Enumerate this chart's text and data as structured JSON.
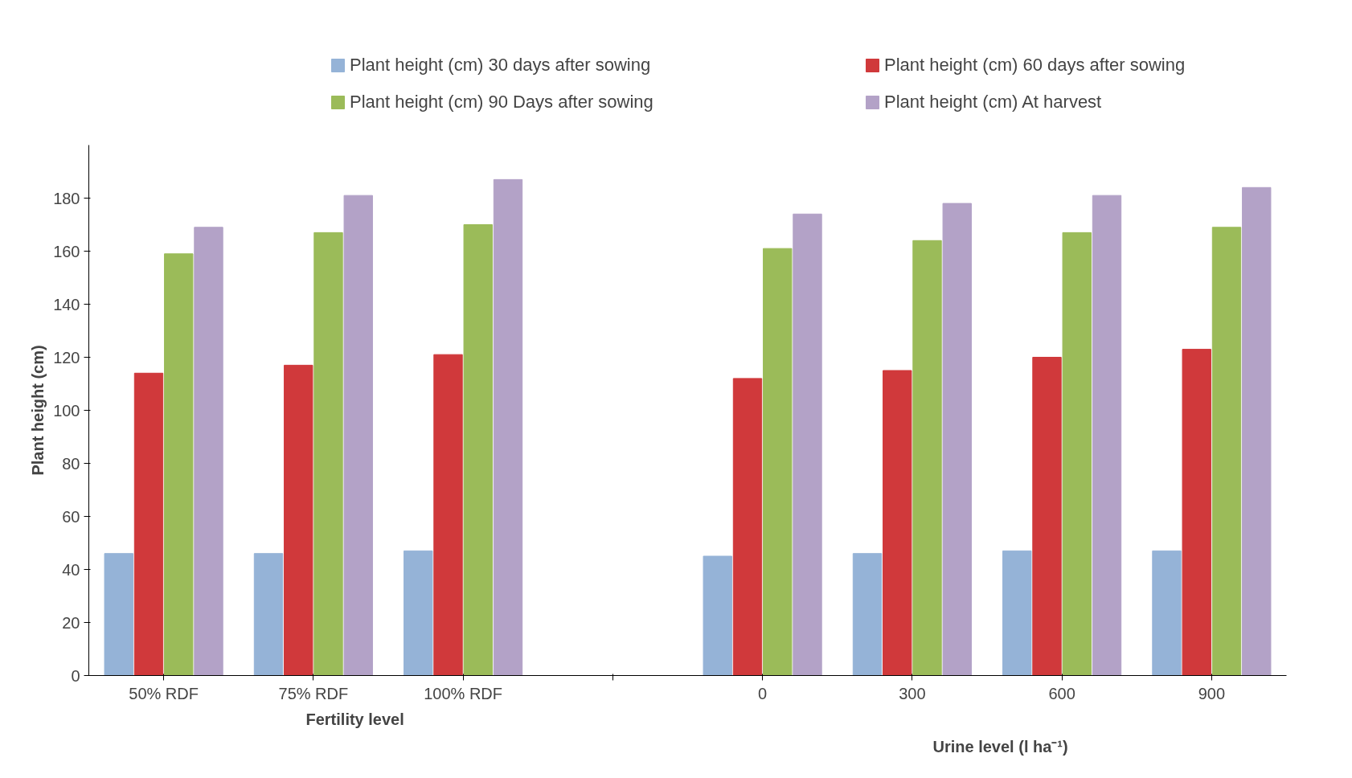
{
  "chart_data": {
    "type": "bar",
    "ylabel": "Plant height (cm)",
    "xlabel": "Fertility level",
    "annotations": [
      "Urine level (l ha⁻¹)"
    ],
    "categories": [
      "50% RDF",
      "75% RDF",
      "100% RDF",
      null,
      "0",
      "300",
      "600",
      "900"
    ],
    "series": [
      {
        "name": "Plant height (cm) 30 days after sowing",
        "color": "#95b3d7",
        "values": [
          46,
          46,
          47,
          null,
          45,
          46,
          47,
          47
        ]
      },
      {
        "name": "Plant height (cm) 60 days after sowing",
        "color": "#d0393b",
        "values": [
          114,
          117,
          121,
          null,
          112,
          115,
          120,
          123
        ]
      },
      {
        "name": "Plant height (cm) 90 Days after sowing",
        "color": "#9bbb59",
        "values": [
          159,
          167,
          170,
          null,
          161,
          164,
          167,
          169
        ]
      },
      {
        "name": "Plant height (cm) At harvest",
        "color": "#b3a2c7",
        "values": [
          169,
          181,
          187,
          null,
          174,
          178,
          181,
          184
        ]
      }
    ],
    "ylim": [
      0,
      200
    ],
    "yticks": [
      0,
      20,
      40,
      60,
      80,
      100,
      120,
      140,
      160,
      180
    ],
    "grid": false,
    "legend": "top"
  }
}
